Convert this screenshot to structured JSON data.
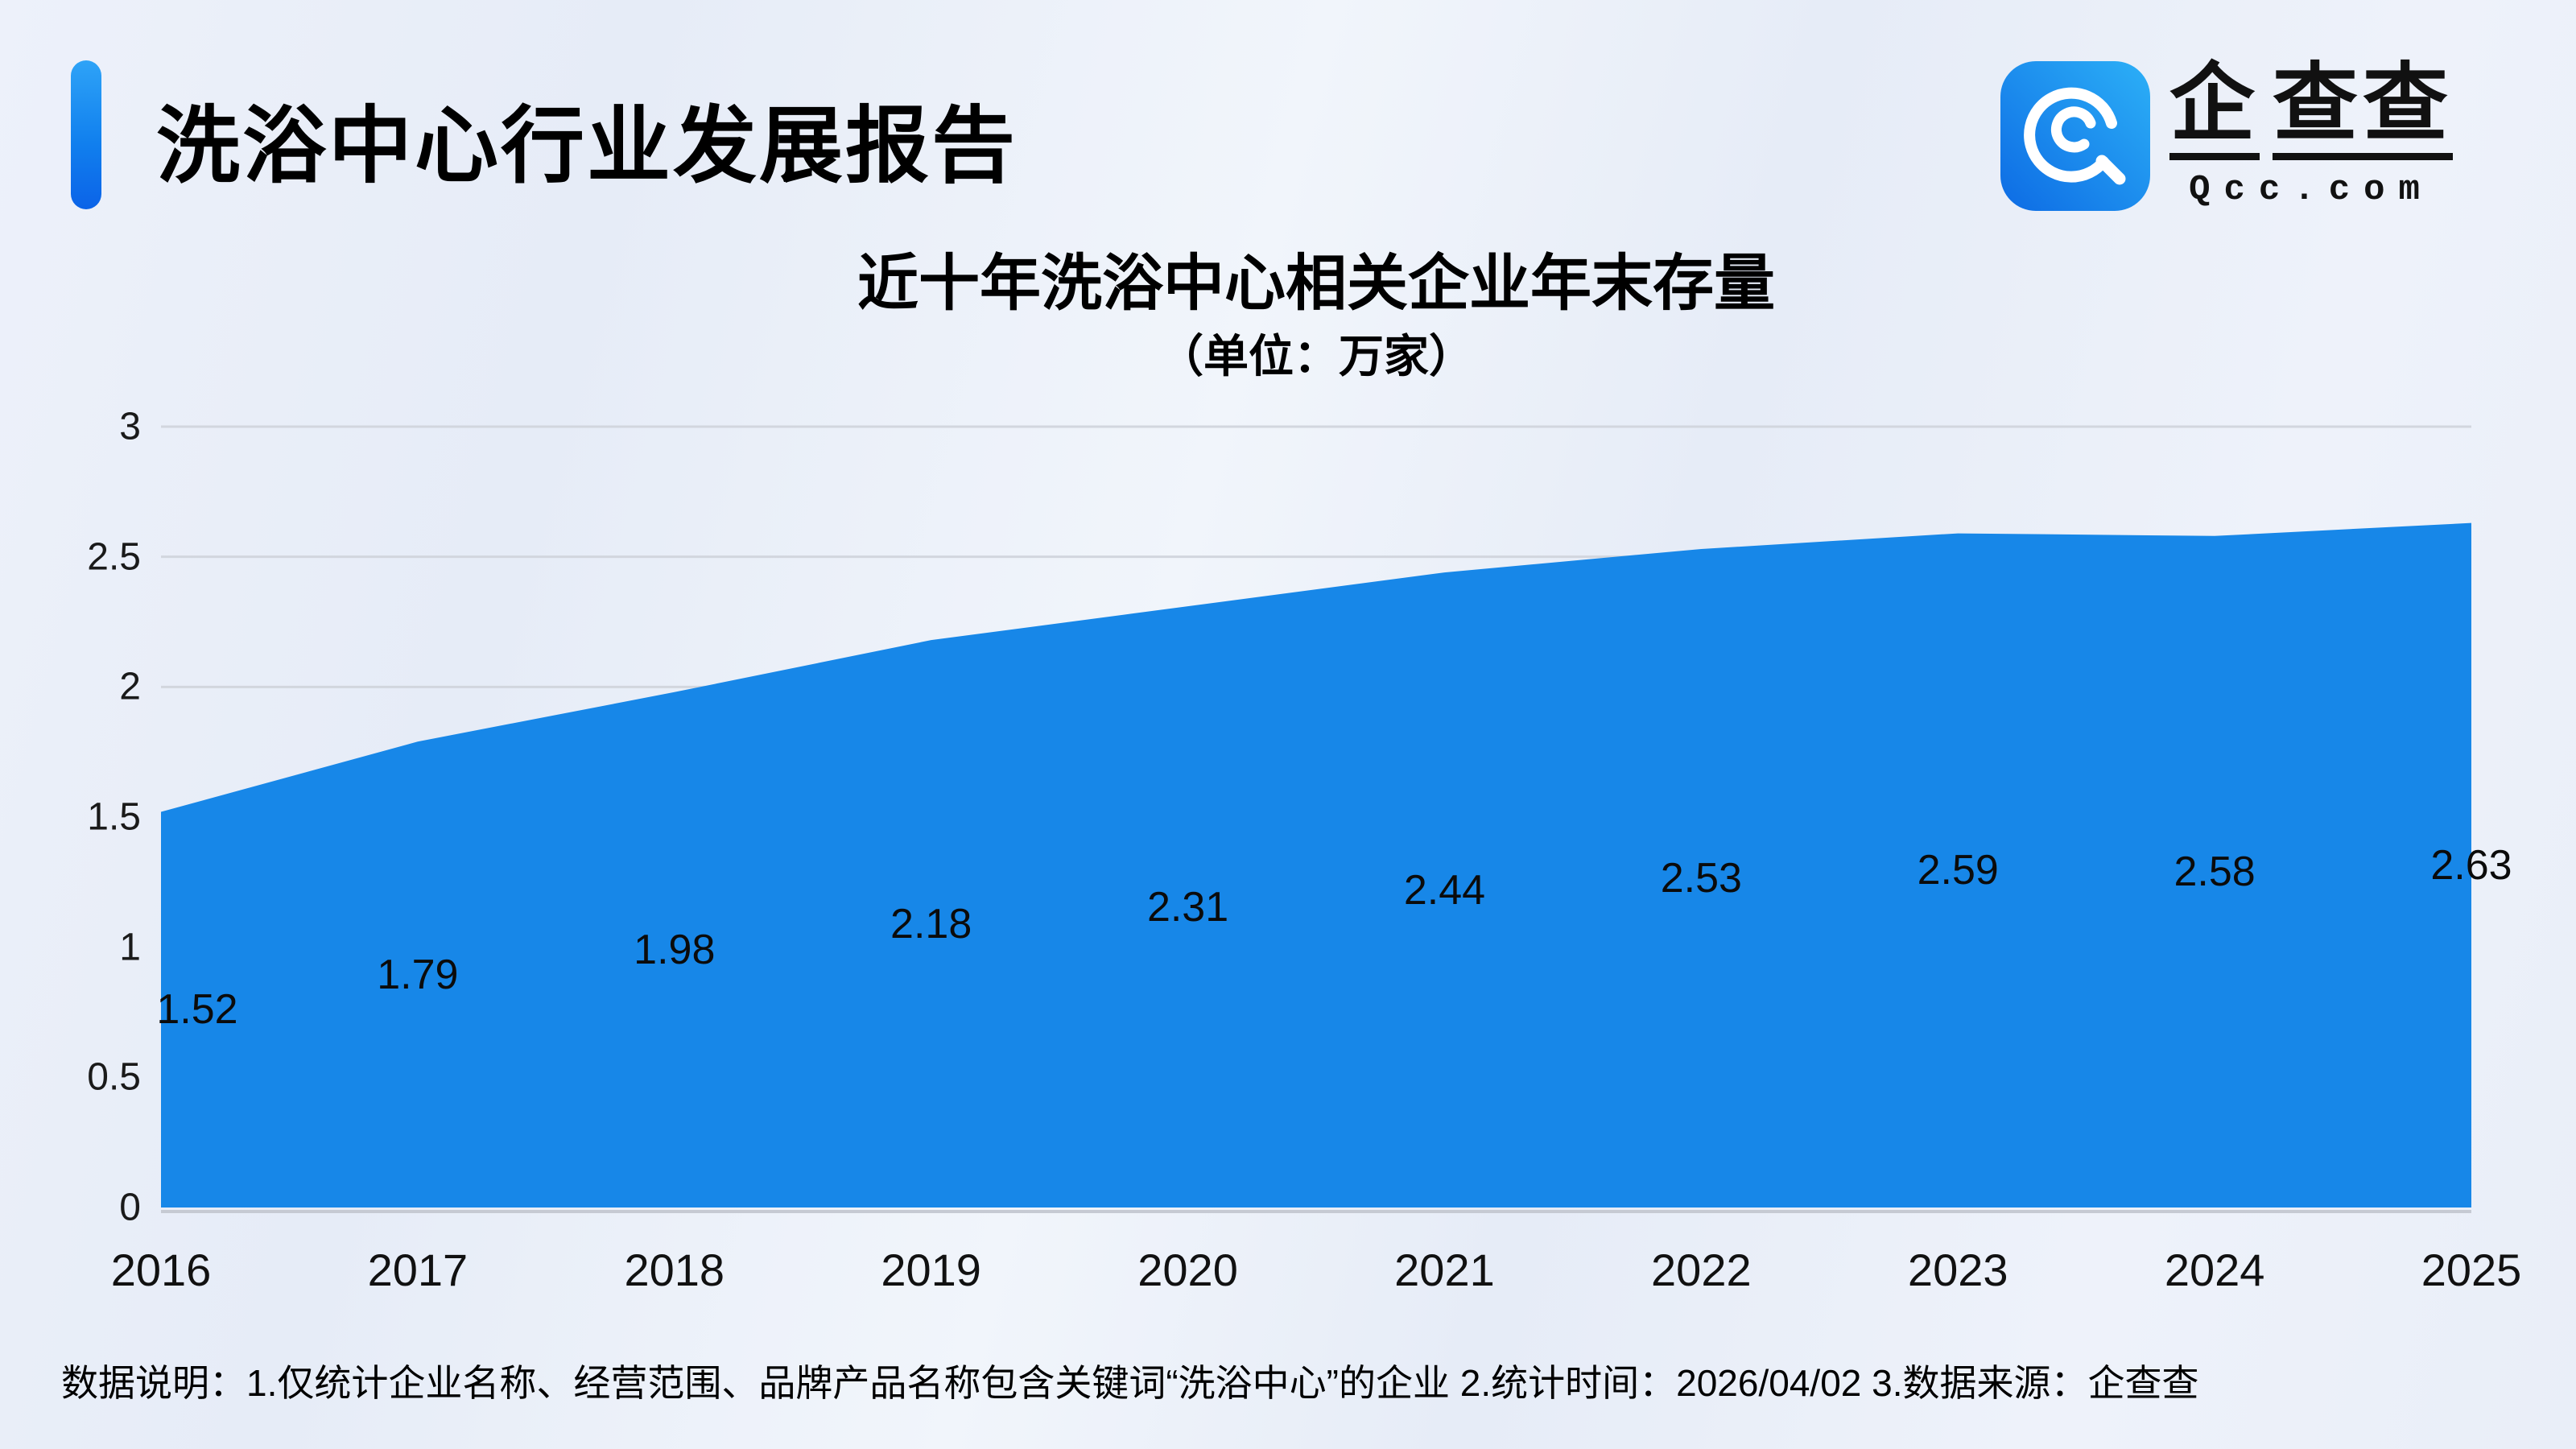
{
  "header": {
    "title": "洗浴中心行业发展报告",
    "logo": {
      "icon": "qcc-logo-icon",
      "brand_part1": "企",
      "brand_part2": "查查",
      "domain": "Qcc.com"
    }
  },
  "chart_data": {
    "type": "area",
    "title": "近十年洗浴中心相关企业年末存量",
    "subtitle": "（单位：万家）",
    "categories": [
      "2016",
      "2017",
      "2018",
      "2019",
      "2020",
      "2021",
      "2022",
      "2023",
      "2024",
      "2025"
    ],
    "values": [
      1.52,
      1.79,
      1.98,
      2.18,
      2.31,
      2.44,
      2.53,
      2.59,
      2.58,
      2.63
    ],
    "ylim": [
      0,
      3
    ],
    "yticks": [
      0,
      0.5,
      1,
      1.5,
      2,
      2.5,
      3
    ],
    "grid": true,
    "legend": "none",
    "area_color": "#1787e8",
    "grid_color": "#d2d6de",
    "zero_line_color": "#c6cad3",
    "label_color": "#0b0b0b"
  },
  "footer": {
    "note": "数据说明：1.仅统计企业名称、经营范围、品牌产品名称包含关键词“洗浴中心”的企业  2.统计时间：2026/04/02  3.数据来源：企查查"
  },
  "theme": {
    "accent_blue_top": "#2ea3f7",
    "accent_blue_bottom": "#0b63e8",
    "icon_gradient_start": "#0d6be4",
    "icon_gradient_end": "#2cb0f7"
  }
}
